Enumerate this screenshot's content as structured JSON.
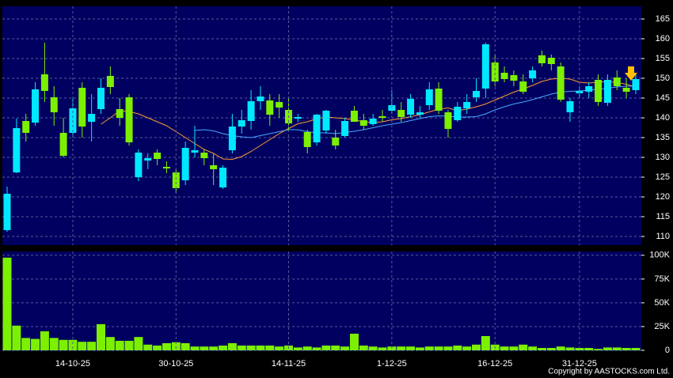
{
  "chart_data": [
    {
      "type": "candlestick",
      "open": [
        111.6,
        126.2,
        139.2,
        138.8,
        151,
        145.2,
        136.2,
        136.2,
        147.6,
        139,
        142.2,
        150.6,
        142.2,
        145.2,
        125,
        129.2,
        131.2,
        127.6,
        126.2,
        124.2,
        131.2,
        131.2,
        128,
        122.4,
        131.8,
        137.8,
        139.2,
        144.2,
        144.4,
        144,
        142,
        139.8,
        136.4,
        133.8,
        136.8,
        135,
        135.4,
        141.8,
        139.4,
        138.4,
        140.4,
        141.8,
        142,
        140.8,
        140.8,
        143.2,
        147.4,
        141.4,
        139.4,
        142.4,
        145.2,
        147.4,
        154,
        151.4,
        150.8,
        149.2,
        150,
        155.8,
        155.2,
        153,
        141.4,
        146.2,
        146.6,
        149.6,
        143.8,
        150.2,
        147.6,
        147
      ],
      "high": [
        122.6,
        139.8,
        141,
        149,
        159,
        148,
        140,
        145,
        149,
        146,
        150,
        153,
        145,
        146,
        132,
        131,
        132,
        129,
        127,
        134,
        138,
        132,
        131,
        128,
        141,
        142,
        147,
        148,
        146,
        146,
        145,
        141,
        137,
        141,
        142,
        137,
        140,
        143,
        141,
        141,
        142,
        147,
        144,
        146,
        143,
        149,
        149,
        142,
        144,
        146,
        150,
        159,
        156,
        153,
        152,
        151,
        153,
        157,
        156,
        154,
        145,
        148,
        149,
        151,
        151,
        152,
        150,
        151
      ],
      "low": [
        111.2,
        126,
        134,
        138,
        144,
        138,
        130,
        135,
        135,
        134,
        141,
        146,
        138,
        133,
        124,
        127,
        128,
        126,
        121,
        123,
        130,
        128,
        123,
        122,
        131,
        136,
        137,
        142,
        138,
        140,
        137,
        139,
        131,
        133,
        136,
        132,
        135,
        139,
        137,
        138,
        139,
        141,
        139,
        140,
        140,
        142,
        141,
        135,
        139,
        141,
        144,
        145,
        148,
        149,
        148,
        146,
        149,
        153,
        152,
        144,
        139,
        145,
        145,
        143,
        143,
        147,
        145,
        146
      ],
      "close": [
        120.8,
        137.4,
        136.2,
        147.2,
        146.8,
        141.4,
        130.4,
        142.4,
        137.8,
        141,
        147.6,
        147.8,
        140,
        133.8,
        131.2,
        129.8,
        129.6,
        127.2,
        122.2,
        132.4,
        131.8,
        129.8,
        127,
        127.4,
        137.8,
        139.4,
        144.2,
        145.4,
        140.8,
        142.6,
        138.6,
        140.2,
        132.6,
        140.8,
        141.8,
        133,
        139.2,
        139,
        138,
        139.8,
        140,
        143.2,
        140.2,
        144.8,
        141.4,
        147.2,
        141.8,
        137.2,
        142.8,
        144,
        146.8,
        158.6,
        149.2,
        149.8,
        149.4,
        146.6,
        152,
        153.8,
        153.6,
        144.6,
        144.2,
        146.8,
        148,
        144,
        149.6,
        148,
        146.6,
        149.8
      ],
      "up_color": "#00e8ff",
      "down_color": "#7cf000",
      "ma_lines": [
        {
          "color": "#ff9a30",
          "values": [
            null,
            null,
            null,
            null,
            null,
            null,
            null,
            null,
            null,
            null,
            138.4,
            140,
            141.8,
            141.6,
            141,
            140,
            139,
            138,
            136.5,
            135,
            133.5,
            132,
            131,
            129.6,
            129.5,
            130.2,
            131.5,
            133,
            134.5,
            136,
            137.3,
            138.5,
            139,
            139.8,
            140.2,
            140,
            139.8,
            139.5,
            139,
            138.8,
            139,
            139.5,
            139.8,
            140.3,
            140.8,
            141.5,
            142.2,
            142.5,
            141.8,
            142.2,
            142.8,
            143.5,
            144.5,
            145.5,
            146.5,
            147.3,
            148.2,
            149.2,
            149.8,
            150,
            149.8,
            149,
            148.8,
            149,
            149.2,
            148.9,
            148.5,
            147.8
          ]
        },
        {
          "color": "#4aa8ff",
          "values": [
            null,
            null,
            null,
            null,
            null,
            null,
            null,
            null,
            null,
            null,
            null,
            null,
            null,
            null,
            null,
            null,
            null,
            null,
            null,
            null,
            136.8,
            137,
            136.7,
            136,
            135.5,
            135.2,
            135,
            135.5,
            136,
            136.5,
            137,
            137,
            136.5,
            136.2,
            136.2,
            136,
            136.3,
            136.6,
            137,
            137.5,
            138,
            138.4,
            138.8,
            139.3,
            139.8,
            140.3,
            140.5,
            140.4,
            140.2,
            140.2,
            140.3,
            141,
            142,
            142.8,
            143.5,
            144,
            144.6,
            145.3,
            146,
            146.5,
            146.7,
            146.8,
            147,
            147.2,
            147.5,
            147.8,
            148,
            148
          ]
        }
      ],
      "ylim": [
        107.8,
        168.2
      ],
      "yticks": [
        110,
        115,
        120,
        125,
        130,
        135,
        140,
        145,
        150,
        155,
        160,
        165
      ],
      "grid": true
    },
    {
      "type": "bar",
      "categories": [
        null,
        null,
        null,
        null,
        null,
        null,
        null,
        "14-10-25",
        null,
        null,
        null,
        null,
        null,
        null,
        null,
        null,
        null,
        null,
        "30-10-25",
        null,
        null,
        null,
        null,
        null,
        null,
        null,
        null,
        null,
        null,
        null,
        "14-11-25",
        null,
        null,
        null,
        null,
        null,
        null,
        null,
        null,
        null,
        null,
        "1-12-25",
        null,
        null,
        null,
        null,
        null,
        null,
        null,
        null,
        null,
        null,
        "16-12-25",
        null,
        null,
        null,
        null,
        null,
        null,
        null,
        null,
        "31-12-25",
        null,
        null,
        null,
        null,
        null,
        null
      ],
      "values": [
        97500,
        26000,
        13000,
        12000,
        20000,
        13000,
        11000,
        11000,
        9000,
        9000,
        27500,
        14000,
        10000,
        10000,
        14000,
        6000,
        5000,
        7500,
        8500,
        7500,
        4000,
        4000,
        4000,
        5000,
        7500,
        5000,
        5000,
        5000,
        5000,
        4000,
        5000,
        3000,
        4000,
        3000,
        5000,
        5000,
        4000,
        17500,
        5000,
        4000,
        3000,
        4000,
        4000,
        4000,
        3000,
        4000,
        4000,
        4000,
        5000,
        4000,
        6000,
        15000,
        6000,
        4000,
        4000,
        6000,
        4000,
        2500,
        2500,
        4000,
        3000,
        2500,
        2500,
        1500,
        3000,
        3000,
        2500,
        2500
      ],
      "color": "#7cf000",
      "ylim": [
        0,
        104000
      ],
      "yticks": [
        0,
        {
          "value": 25000,
          "label": "25K"
        },
        {
          "value": 50000,
          "label": "50K"
        },
        {
          "value": 75000,
          "label": "75K"
        },
        {
          "value": 100000,
          "label": "100K"
        }
      ],
      "grid": true,
      "footnote": "Copyright by AASTOCKS.com Ltd."
    }
  ]
}
